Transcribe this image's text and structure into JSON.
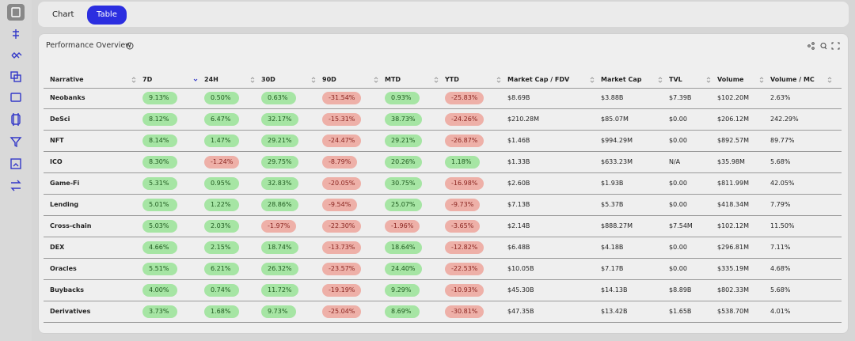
{
  "tabs": [
    "Chart",
    "Table"
  ],
  "panel": {
    "title": "Performance Overview"
  },
  "table": {
    "columns": [
      "Narrative",
      "7D",
      "24H",
      "30D",
      "90D",
      "MTD",
      "YTD",
      "Market Cap / FDV",
      "Market Cap",
      "TVL",
      "Volume",
      "Volume / MC"
    ],
    "rows": [
      [
        "Neobanks",
        "9.13%",
        "0.50%",
        "0.63%",
        "-31.54%",
        "0.93%",
        "-25.83%",
        "$8.69B",
        "$3.88B",
        "$7.39B",
        "$102.20M",
        "2.63%"
      ],
      [
        "DeSci",
        "8.12%",
        "6.47%",
        "32.17%",
        "-15.31%",
        "38.73%",
        "-24.26%",
        "$210.28M",
        "$85.07M",
        "$0.00",
        "$206.12M",
        "242.29%"
      ],
      [
        "NFT",
        "8.14%",
        "1.47%",
        "29.21%",
        "-24.47%",
        "29.21%",
        "-26.87%",
        "$1.46B",
        "$994.29M",
        "$0.00",
        "$892.57M",
        "89.77%"
      ],
      [
        "ICO",
        "8.30%",
        "-1.24%",
        "29.75%",
        "-8.79%",
        "20.26%",
        "1.18%",
        "$1.33B",
        "$633.23M",
        "N/A",
        "$35.98M",
        "5.68%"
      ],
      [
        "Game-Fi",
        "5.31%",
        "0.95%",
        "32.83%",
        "-20.05%",
        "30.75%",
        "-16.98%",
        "$2.60B",
        "$1.93B",
        "$0.00",
        "$811.99M",
        "42.05%"
      ],
      [
        "Lending",
        "5.01%",
        "1.22%",
        "28.86%",
        "-9.54%",
        "25.07%",
        "-9.73%",
        "$7.13B",
        "$5.37B",
        "$0.00",
        "$418.34M",
        "7.79%"
      ],
      [
        "Cross-chain",
        "5.03%",
        "2.03%",
        "-1.97%",
        "-22.30%",
        "-1.96%",
        "-3.65%",
        "$2.14B",
        "$888.27M",
        "$7.54M",
        "$102.12M",
        "11.50%"
      ],
      [
        "DEX",
        "4.66%",
        "2.15%",
        "18.74%",
        "-13.73%",
        "18.64%",
        "-12.82%",
        "$6.48B",
        "$4.18B",
        "$0.00",
        "$296.81M",
        "7.11%"
      ],
      [
        "Oracles",
        "5.51%",
        "6.21%",
        "26.32%",
        "-23.57%",
        "24.40%",
        "-22.53%",
        "$10.05B",
        "$7.17B",
        "$0.00",
        "$335.19M",
        "4.68%"
      ],
      [
        "Buybacks",
        "4.00%",
        "0.74%",
        "11.72%",
        "-19.19%",
        "9.29%",
        "-10.93%",
        "$45.30B",
        "$14.13B",
        "$8.89B",
        "$802.33M",
        "5.68%"
      ],
      [
        "Derivatives",
        "3.73%",
        "1.68%",
        "9.73%",
        "-25.04%",
        "8.69%",
        "-30.81%",
        "$47.35B",
        "$13.42B",
        "$1.65B",
        "$538.70M",
        "4.01%"
      ]
    ]
  }
}
